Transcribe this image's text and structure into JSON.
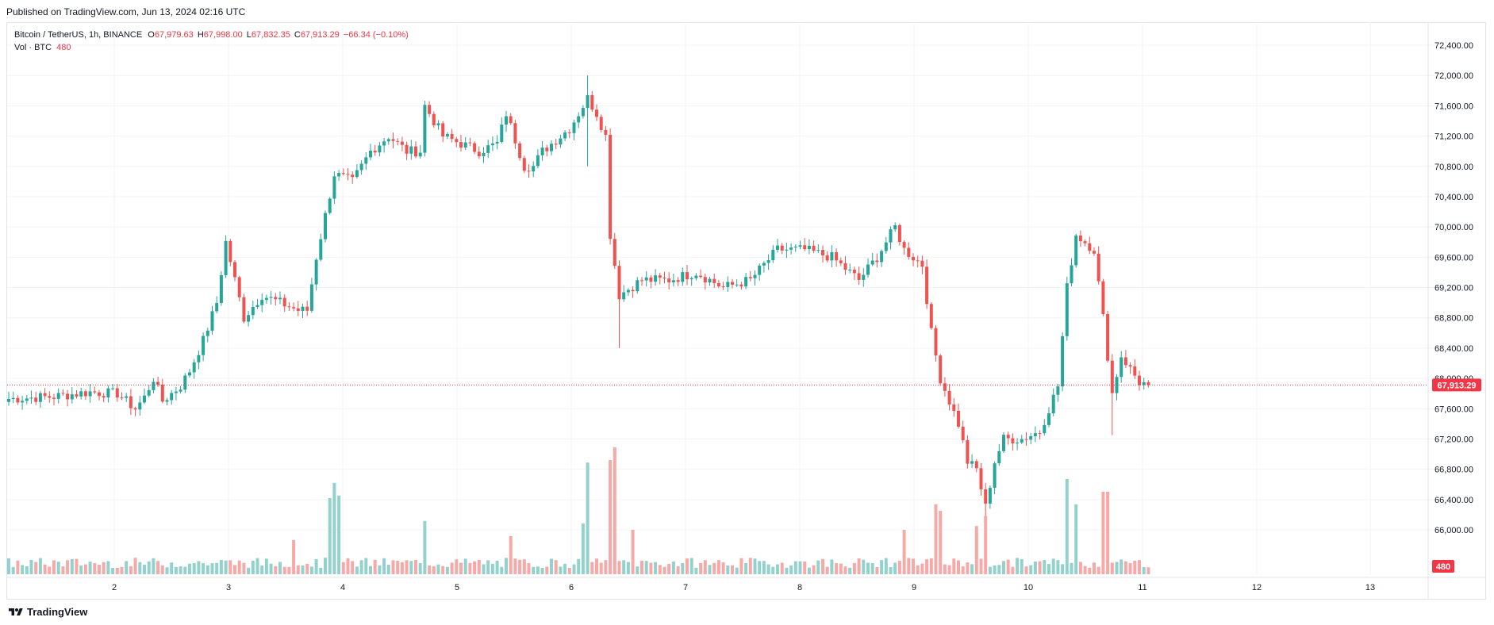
{
  "header": {
    "published": "Published on TradingView.com, Jun 13, 2024 02:16 UTC"
  },
  "legend": {
    "symbol": "Bitcoin / TetherUS, 1h, BINANCE",
    "open_label": "O",
    "open": "67,979.63",
    "high_label": "H",
    "high": "67,998.00",
    "low_label": "L",
    "low": "67,832.35",
    "close_label": "C",
    "close": "67,913.29",
    "change": "−66.34 (−0.10%)",
    "volume_label": "Vol · BTC",
    "volume": "480"
  },
  "footer": {
    "brand": "TradingView"
  },
  "colors": {
    "up": "#26a69a",
    "down": "#ef5350",
    "vol_up": "#93d2cc",
    "vol_down": "#f7a9a7",
    "grid": "#f0f3fa",
    "price_label_bg": "#f23645"
  },
  "chart_data": {
    "type": "candlestick",
    "symbol": "Bitcoin / TetherUS",
    "interval": "1h",
    "exchange": "BINANCE",
    "y_ticks": [
      66000,
      66400,
      66800,
      67200,
      67600,
      68000,
      68400,
      68800,
      69200,
      69600,
      70000,
      70400,
      70800,
      71200,
      71600,
      72000,
      72400
    ],
    "y_tick_labels": [
      "66,000.00",
      "66,400.00",
      "66,800.00",
      "67,200.00",
      "67,600.00",
      "68,000.00",
      "68,400.00",
      "68,800.00",
      "69,200.00",
      "69,600.00",
      "70,000.00",
      "70,400.00",
      "70,800.00",
      "71,200.00",
      "71,600.00",
      "72,000.00",
      "72,400.00"
    ],
    "x_tick_labels": [
      "2",
      "3",
      "4",
      "5",
      "6",
      "7",
      "8",
      "9",
      "10",
      "11",
      "12",
      "13"
    ],
    "last_price": 67913.29,
    "last_price_label": "67,913.29",
    "last_volume_label": "480",
    "close_path": [
      [
        0,
        67730
      ],
      [
        10,
        67760
      ],
      [
        18,
        67820
      ],
      [
        24,
        67800
      ],
      [
        28,
        67600
      ],
      [
        30,
        67750
      ],
      [
        32,
        68000
      ],
      [
        34,
        67700
      ],
      [
        38,
        67900
      ],
      [
        40,
        68100
      ],
      [
        43,
        68500
      ],
      [
        46,
        69000
      ],
      [
        48,
        69800
      ],
      [
        50,
        69300
      ],
      [
        52,
        68800
      ],
      [
        56,
        69100
      ],
      [
        60,
        69000
      ],
      [
        64,
        68900
      ],
      [
        66,
        68900
      ],
      [
        68,
        69600
      ],
      [
        72,
        70700
      ],
      [
        76,
        70600
      ],
      [
        80,
        71000
      ],
      [
        84,
        71200
      ],
      [
        88,
        71000
      ],
      [
        91,
        71000
      ],
      [
        92,
        71600
      ],
      [
        96,
        71200
      ],
      [
        100,
        71100
      ],
      [
        104,
        71000
      ],
      [
        108,
        71100
      ],
      [
        110,
        71500
      ],
      [
        114,
        70800
      ],
      [
        116,
        70800
      ],
      [
        118,
        71000
      ],
      [
        120,
        71100
      ],
      [
        124,
        71300
      ],
      [
        128,
        71700
      ],
      [
        130,
        71500
      ],
      [
        132,
        71200
      ],
      [
        133,
        69900
      ],
      [
        135,
        69100
      ],
      [
        140,
        69300
      ],
      [
        146,
        69300
      ],
      [
        152,
        69400
      ],
      [
        158,
        69200
      ],
      [
        164,
        69300
      ],
      [
        170,
        69700
      ],
      [
        176,
        69700
      ],
      [
        182,
        69600
      ],
      [
        188,
        69300
      ],
      [
        192,
        69600
      ],
      [
        196,
        70000
      ],
      [
        198,
        69700
      ],
      [
        202,
        69500
      ],
      [
        204,
        68600
      ],
      [
        206,
        68000
      ],
      [
        210,
        67400
      ],
      [
        212,
        66900
      ],
      [
        214,
        66800
      ],
      [
        216,
        66300
      ],
      [
        218,
        66900
      ],
      [
        220,
        67200
      ],
      [
        224,
        67200
      ],
      [
        228,
        67300
      ],
      [
        232,
        67900
      ],
      [
        234,
        69200
      ],
      [
        236,
        69900
      ],
      [
        240,
        69700
      ],
      [
        242,
        68800
      ],
      [
        244,
        67800
      ],
      [
        246,
        68300
      ],
      [
        250,
        67950
      ],
      [
        252,
        67913
      ]
    ],
    "wicks_extreme": [
      [
        128,
        72000,
        70800
      ],
      [
        135,
        69100,
        68400
      ],
      [
        216,
        66300,
        66100
      ],
      [
        244,
        67800,
        67250
      ]
    ],
    "volume_spikes": [
      [
        63,
        0.27
      ],
      [
        71,
        0.6
      ],
      [
        72,
        0.72
      ],
      [
        73,
        0.62
      ],
      [
        92,
        0.42
      ],
      [
        111,
        0.3
      ],
      [
        127,
        0.4
      ],
      [
        128,
        0.88
      ],
      [
        133,
        0.9
      ],
      [
        134,
        1.0
      ],
      [
        138,
        0.35
      ],
      [
        198,
        0.35
      ],
      [
        205,
        0.55
      ],
      [
        206,
        0.5
      ],
      [
        214,
        0.38
      ],
      [
        216,
        0.46
      ],
      [
        234,
        0.75
      ],
      [
        236,
        0.55
      ],
      [
        242,
        0.65
      ],
      [
        243,
        0.65
      ]
    ]
  }
}
